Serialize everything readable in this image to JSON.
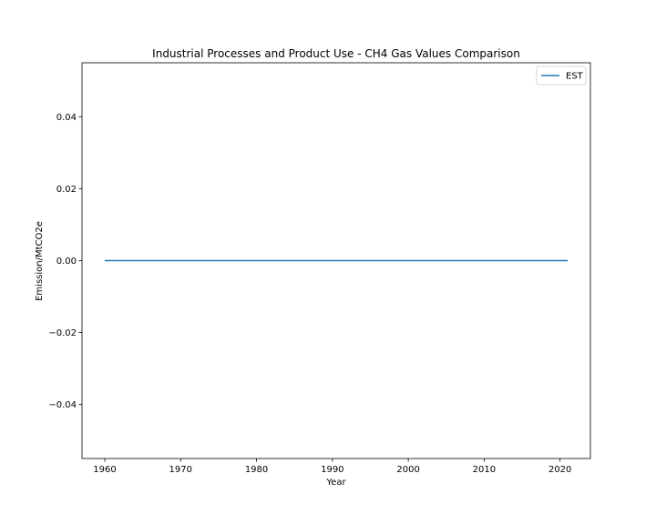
{
  "chart_data": {
    "type": "line",
    "title": "Industrial Processes and Product Use - CH4 Gas Values Comparison",
    "xlabel": "Year",
    "ylabel": "Emission/MtCO2e",
    "xlim": [
      1957,
      2024
    ],
    "ylim": [
      -0.055,
      0.055
    ],
    "xticks": [
      1960,
      1970,
      1980,
      1990,
      2000,
      2010,
      2020
    ],
    "xtick_labels": [
      "1960",
      "1970",
      "1980",
      "1990",
      "2000",
      "2010",
      "2020"
    ],
    "yticks": [
      -0.04,
      -0.02,
      0.0,
      0.02,
      0.04
    ],
    "ytick_labels": [
      "−0.04",
      "−0.02",
      "0.00",
      "0.02",
      "0.04"
    ],
    "grid": false,
    "legend_position": "top-right",
    "series": [
      {
        "name": "EST",
        "color": "#1f77b4",
        "x": [
          1960,
          2021
        ],
        "y": [
          0,
          0
        ]
      }
    ]
  }
}
